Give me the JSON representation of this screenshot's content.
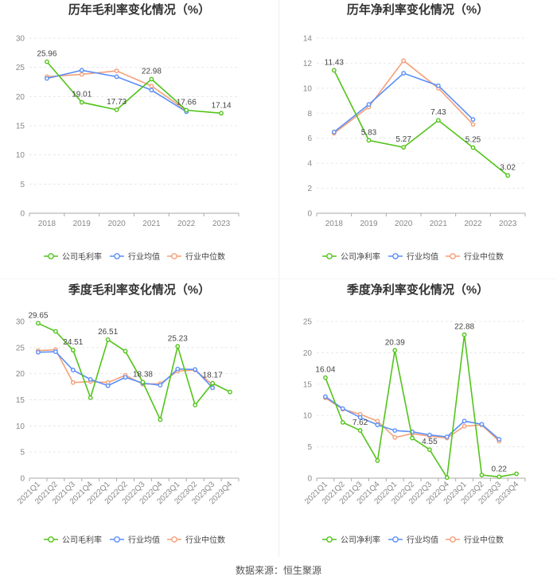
{
  "footer": {
    "source": "数据来源：恒生聚源"
  },
  "colors": {
    "company": "#52c41a",
    "avg": "#5b8ff9",
    "median": "#f4a079",
    "grid": "#e8e8e8",
    "axis": "#aaaaaa"
  },
  "chart_data": [
    {
      "type": "line",
      "title": "历年毛利率变化情况（%）",
      "categories": [
        "2018",
        "2019",
        "2020",
        "2021",
        "2022",
        "2023"
      ],
      "ylim": [
        0,
        30
      ],
      "yticks": [
        0,
        5,
        10,
        15,
        20,
        25,
        30
      ],
      "series": [
        {
          "name": "公司毛利率",
          "key": "company",
          "values": [
            25.96,
            19.01,
            17.73,
            22.98,
            17.66,
            17.14
          ],
          "labels": [
            "25.96",
            "19.01",
            "17.73",
            "22.98",
            "17.66",
            "17.14"
          ]
        },
        {
          "name": "行业均值",
          "key": "avg",
          "values": [
            23.1,
            24.5,
            23.4,
            21.1,
            17.4,
            null
          ]
        },
        {
          "name": "行业中位数",
          "key": "median",
          "values": [
            23.4,
            23.8,
            24.4,
            21.8,
            17.6,
            null
          ]
        }
      ]
    },
    {
      "type": "line",
      "title": "历年净利率变化情况（%）",
      "categories": [
        "2018",
        "2019",
        "2020",
        "2021",
        "2022",
        "2023"
      ],
      "ylim": [
        0,
        14
      ],
      "yticks": [
        0,
        2,
        4,
        6,
        8,
        10,
        12,
        14
      ],
      "series": [
        {
          "name": "公司净利率",
          "key": "company",
          "values": [
            11.43,
            5.83,
            5.27,
            7.43,
            5.25,
            3.02
          ],
          "labels": [
            "11.43",
            "5.83",
            "5.27",
            "7.43",
            "5.25",
            "3.02"
          ]
        },
        {
          "name": "行业均值",
          "key": "avg",
          "values": [
            6.5,
            8.7,
            11.2,
            10.2,
            7.5,
            null
          ]
        },
        {
          "name": "行业中位数",
          "key": "median",
          "values": [
            6.4,
            8.5,
            12.2,
            10.0,
            7.1,
            null
          ]
        }
      ]
    },
    {
      "type": "line",
      "title": "季度毛利率变化情况（%）",
      "categories": [
        "2021Q1",
        "2021Q2",
        "2021Q3",
        "2021Q4",
        "2022Q1",
        "2022Q2",
        "2022Q3",
        "2022Q4",
        "2023Q1",
        "2023Q2",
        "2023Q3",
        "2023Q4"
      ],
      "ylim": [
        0,
        30
      ],
      "yticks": [
        0,
        5,
        10,
        15,
        20,
        25,
        30
      ],
      "series": [
        {
          "name": "公司毛利率",
          "key": "company",
          "values": [
            29.65,
            28.1,
            24.51,
            15.4,
            26.51,
            24.3,
            18.38,
            11.2,
            25.23,
            14.0,
            18.17,
            16.5
          ],
          "labels": [
            "29.65",
            "",
            "24.51",
            "",
            "26.51",
            "",
            "18.38",
            "",
            "25.23",
            "",
            "18.17",
            ""
          ]
        },
        {
          "name": "行业均值",
          "key": "avg",
          "values": [
            24.1,
            24.2,
            20.7,
            18.9,
            17.7,
            19.3,
            18.2,
            17.8,
            20.9,
            20.8,
            17.3,
            null
          ]
        },
        {
          "name": "行业中位数",
          "key": "median",
          "values": [
            24.4,
            24.6,
            18.3,
            18.5,
            18.3,
            19.7,
            18.0,
            18.1,
            20.5,
            20.7,
            17.9,
            null
          ]
        }
      ]
    },
    {
      "type": "line",
      "title": "季度净利率变化情况（%）",
      "categories": [
        "2021Q1",
        "2021Q2",
        "2021Q3",
        "2021Q4",
        "2022Q1",
        "2022Q2",
        "2022Q3",
        "2022Q4",
        "2023Q1",
        "2023Q2",
        "2023Q3",
        "2023Q4"
      ],
      "ylim": [
        0,
        25
      ],
      "yticks": [
        0,
        5,
        10,
        15,
        20,
        25
      ],
      "series": [
        {
          "name": "公司净利率",
          "key": "company",
          "values": [
            16.04,
            8.9,
            7.62,
            2.8,
            20.39,
            6.4,
            4.55,
            0.1,
            22.88,
            0.5,
            0.22,
            0.7
          ],
          "labels": [
            "16.04",
            "",
            "7.62",
            "",
            "20.39",
            "",
            "4.55",
            "",
            "22.88",
            "",
            "0.22",
            ""
          ]
        },
        {
          "name": "行业均值",
          "key": "avg",
          "values": [
            13.0,
            11.1,
            9.7,
            8.5,
            7.6,
            7.4,
            6.9,
            6.6,
            9.1,
            8.6,
            6.2,
            null
          ]
        },
        {
          "name": "行业中位数",
          "key": "median",
          "values": [
            12.8,
            11.0,
            10.2,
            9.1,
            6.5,
            7.1,
            6.7,
            6.4,
            8.3,
            8.5,
            5.9,
            null
          ]
        }
      ]
    }
  ]
}
